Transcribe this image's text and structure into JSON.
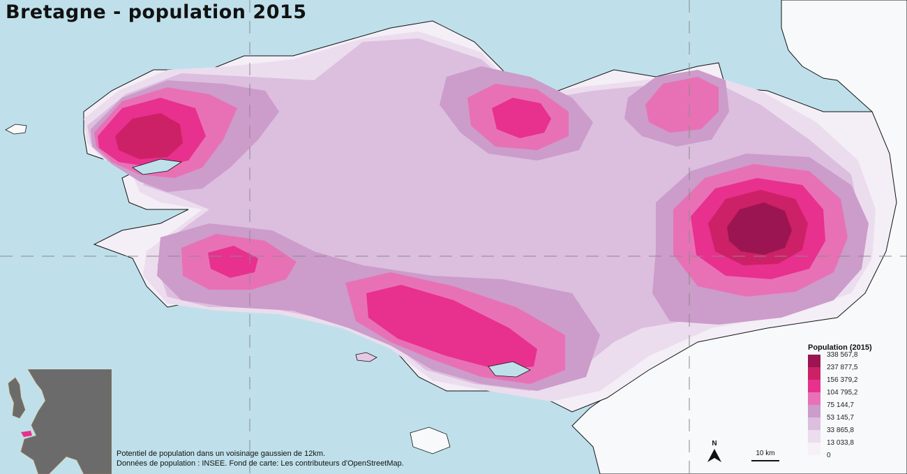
{
  "title": "Bretagne - population 2015",
  "legend": {
    "title": "Population (2015)",
    "classes": [
      {
        "label": "338 567,8",
        "color": "#9b1552"
      },
      {
        "label": "237 877,5",
        "color": "#cc2166"
      },
      {
        "label": "156 379,2",
        "color": "#e8308e"
      },
      {
        "label": "104 795,2",
        "color": "#e871b6"
      },
      {
        "label": "75 144,7",
        "color": "#cc9ccb"
      },
      {
        "label": "53 145,7",
        "color": "#dcbedf"
      },
      {
        "label": "33 865,8",
        "color": "#ebdded"
      },
      {
        "label": "13 033,8",
        "color": "#f6f0f7"
      },
      {
        "label": "0",
        "color": ""
      }
    ]
  },
  "source": {
    "line1": "Potentiel de population dans un voisinage gaussien de 12km.",
    "line2": "Données de population : INSEE. Fond de carte: Les contributeurs d'OpenStreetMap."
  },
  "north_arrow": {
    "label": "N"
  },
  "scale_bar": {
    "label": "10 km"
  },
  "colors": {
    "sea": "#bfe0ea",
    "land_outside": "#f7f9fa",
    "coastline": "#111111",
    "inset_land": "#6b6b6b",
    "inset_highlight": "#e8308e"
  }
}
